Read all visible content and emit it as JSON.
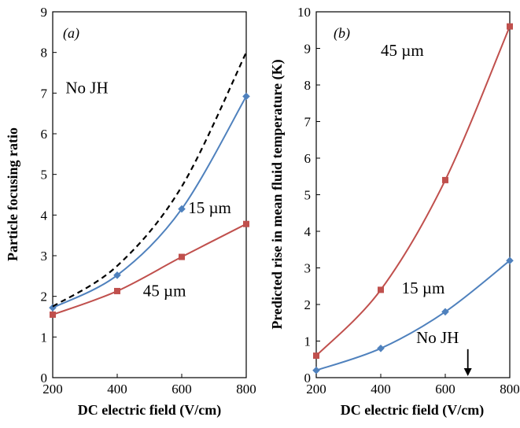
{
  "chart_data": [
    {
      "panel": "(a)",
      "type": "line",
      "xlabel": "DC electric field (V/cm)",
      "ylabel": "Particle focusing ratio",
      "xlim": [
        200,
        800
      ],
      "ylim": [
        0,
        9
      ],
      "xticks": [
        "200",
        "400",
        "600",
        "800"
      ],
      "yticks": [
        "0",
        "1",
        "2",
        "3",
        "4",
        "5",
        "6",
        "7",
        "8",
        "9"
      ],
      "grid": false,
      "legend": "none",
      "series": [
        {
          "name": "15 µm",
          "color": "#4f81bd",
          "marker": "diamond",
          "x": [
            200,
            400,
            600,
            800
          ],
          "y": [
            1.72,
            2.52,
            4.15,
            6.92
          ]
        },
        {
          "name": "45 µm",
          "color": "#c0504d",
          "marker": "square",
          "x": [
            200,
            400,
            600,
            800
          ],
          "y": [
            1.55,
            2.13,
            2.97,
            3.78
          ]
        },
        {
          "name": "No JH",
          "color": "#000000",
          "style": "dashed",
          "x": [
            200,
            400,
            600,
            800
          ],
          "y": [
            1.75,
            2.75,
            4.7,
            8.0
          ]
        }
      ],
      "annotations": [
        {
          "text": "No JH",
          "x": 240,
          "y": 7.0
        },
        {
          "text": "15 µm",
          "x": 620,
          "y": 4.05
        },
        {
          "text": "45 µm",
          "x": 480,
          "y": 2.0
        }
      ]
    },
    {
      "panel": "(b)",
      "type": "line",
      "xlabel": "DC electric field (V/cm)",
      "ylabel": "Predicted rise in mean fluid temperature (K)",
      "xlim": [
        200,
        800
      ],
      "ylim": [
        0,
        10
      ],
      "xticks": [
        "200",
        "400",
        "600",
        "800"
      ],
      "yticks": [
        "0",
        "1",
        "2",
        "3",
        "4",
        "5",
        "6",
        "7",
        "8",
        "9",
        "10"
      ],
      "grid": false,
      "legend": "none",
      "series": [
        {
          "name": "45 µm",
          "color": "#c0504d",
          "marker": "square",
          "x": [
            200,
            400,
            600,
            800
          ],
          "y": [
            0.6,
            2.4,
            5.4,
            9.6
          ]
        },
        {
          "name": "15 µm",
          "color": "#4f81bd",
          "marker": "diamond",
          "x": [
            200,
            400,
            600,
            800
          ],
          "y": [
            0.2,
            0.8,
            1.8,
            3.2
          ]
        }
      ],
      "annotations": [
        {
          "text": "45 µm",
          "x": 400,
          "y": 8.8
        },
        {
          "text": "15 µm",
          "x": 465,
          "y": 2.3
        },
        {
          "text": "No JH",
          "x": 510,
          "y": 0.95,
          "arrow_to": [
            670,
            0
          ]
        }
      ]
    }
  ]
}
